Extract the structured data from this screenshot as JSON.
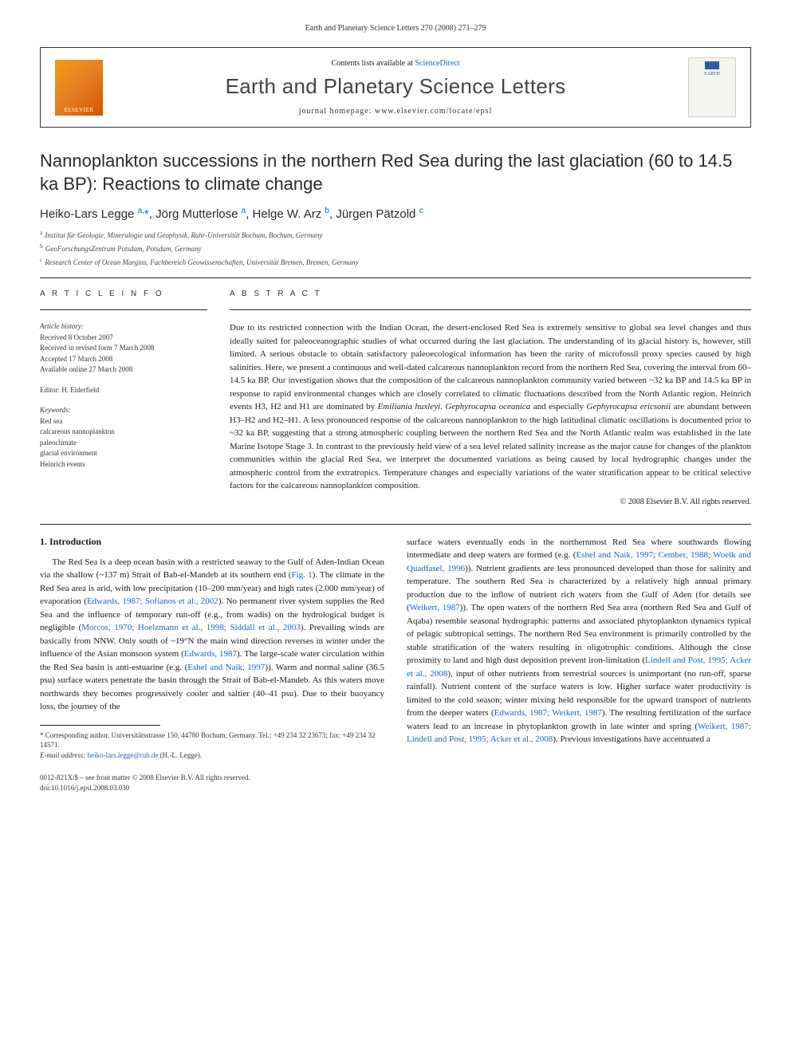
{
  "top_header": "Earth and Planetary Science Letters 270 (2008) 271–279",
  "header": {
    "contents_prefix": "Contents lists available at ",
    "contents_link": "ScienceDirect",
    "journal_name": "Earth and Planetary Science Letters",
    "homepage": "journal homepage: www.elsevier.com/locate/epsl",
    "publisher_logo_text": "ELSEVIER",
    "cover_text": "EARTH"
  },
  "article": {
    "title": "Nannoplankton successions in the northern Red Sea during the last glaciation (60 to 14.5 ka BP): Reactions to climate change",
    "authors_html": "Heiko-Lars Legge <sup>a,</sup><span class='star'>*</span>, Jörg Mutterlose <sup>a</sup>, Helge W. Arz <sup>b</sup>, Jürgen Pätzold <sup>c</sup>",
    "affiliations": [
      {
        "sup": "a",
        "text": "Institut für Geologie, Mineralogie und Geophysik, Ruhr-Universität Bochum, Bochum, Germany"
      },
      {
        "sup": "b",
        "text": "GeoForschungsZentrum Potsdam, Potsdam, Germany"
      },
      {
        "sup": "c",
        "text": "Research Center of Ocean Margins, Fachbereich Geowissenschaften, Universität Bremen, Bremen, Germany"
      }
    ]
  },
  "article_info": {
    "heading": "A R T I C L E   I N F O",
    "history_label": "Article history:",
    "history": [
      "Received 8 October 2007",
      "Received in revised form 7 March 2008",
      "Accepted 17 March 2008",
      "Available online 27 March 2008"
    ],
    "editor_label": "Editor: ",
    "editor": "H. Elderfield",
    "keywords_label": "Keywords:",
    "keywords": [
      "Red sea",
      "calcareous nannoplankton",
      "paleoclimate",
      "glacial environment",
      "Heinrich events"
    ]
  },
  "abstract": {
    "heading": "A B S T R A C T",
    "text": "Due to its restricted connection with the Indian Ocean, the desert-enclosed Red Sea is extremely sensitive to global sea level changes and thus ideally suited for paleoceanographic studies of what occurred during the last glaciation. The understanding of its glacial history is, however, still limited. A serious obstacle to obtain satisfactory paleoecological information has been the rarity of microfossil proxy species caused by high salinities. Here, we present a continuous and well-dated calcareous nannoplankton record from the northern Red Sea, covering the interval from 60–14.5 ka BP. Our investigation shows that the composition of the calcareous nannoplankton community varied between ~32 ka BP and 14.5 ka BP in response to rapid environmental changes which are closely correlated to climatic fluctuations described from the North Atlantic region. Heinrich events H3, H2 and H1 are dominated by <em>Emiliania huxleyi</em>. <em>Gephyrocapsa oceanica</em> and especially <em>Gephyrocapsa ericsonii</em> are abundant between H3–H2 and H2–H1. A less pronounced response of the calcareous nannoplankton to the high latitudinal climatic oscillations is documented prior to ~32 ka BP, suggesting that a strong atmospheric coupling between the northern Red Sea and the North Atlantic realm was established in the late Marine Isotope Stage 3. In contrast to the previously held view of a sea level related salinity increase as the major cause for changes of the plankton communities within the glacial Red Sea, we interpret the documented variations as being caused by local hydrographic changes under the atmospheric control from the extratropics. Temperature changes and especially variations of the water stratification appear to be critical selective factors for the calcareous nannoplankton composition.",
    "copyright": "© 2008 Elsevier B.V. All rights reserved."
  },
  "body": {
    "section_heading": "1. Introduction",
    "col1": "The Red Sea is a deep ocean basin with a restricted seaway to the Gulf of Aden-Indian Ocean via the shallow (~137 m) Strait of Bab-el-Mandeb at its southern end (<a class='ref-link' href='#'>Fig. 1</a>). The climate in the Red Sea area is arid, with low precipitation (10–200 mm/year) and high rates (2.000 mm/year) of evaporation (<a class='ref-link' href='#'>Edwards, 1987; Sofianos et al., 2002</a>). No permanent river system supplies the Red Sea and the influence of temporary run-off (e.g., from wadis) on the hydrological budget is negligible (<a class='ref-link' href='#'>Morcos, 1970; Hoelzmann et al., 1998; Siddall et al., 2003</a>). Prevailing winds are basically from NNW. Only south of ~19°N the main wind direction reverses in winter under the influence of the Asian monsoon system (<a class='ref-link' href='#'>Edwards, 1987</a>). The large-scale water circulation within the Red Sea basin is anti-estuarine (e.g. (<a class='ref-link' href='#'>Eshel and Naik, 1997</a>)). Warm and normal saline (36.5 psu) surface waters penetrate the basin through the Strait of Bab-el-Mandeb. As this waters move northwards they becomes progressively cooler and saltier (40–41 psu). Due to their buoyancy loss, the journey of the",
    "col2": "surface waters eventually ends in the northernmost Red Sea where southwards flowing intermediate and deep waters are formed (e.g. (<a class='ref-link' href='#'>Eshel and Naik, 1997; Cember, 1988; Woelk and Quadfasel, 1996</a>)). Nutrient gradients are less pronounced developed than those for salinity and temperature. The southern Red Sea is characterized by a relatively high annual primary production due to the inflow of nutrient rich waters from the Gulf of Aden (for details see (<a class='ref-link' href='#'>Weikert, 1987</a>)). The open waters of the northern Red Sea area (northern Red Sea and Gulf of Aqaba) resemble seasonal hydrographic patterns and associated phytoplankton dynamics typical of pelagic subtropical settings. The northern Red Sea environment is primarily controlled by the stable stratification of the waters resulting in oligotrophic conditions. Although the close proximity to land and high dust deposition prevent iron-limitation (<a class='ref-link' href='#'>Lindell and Post, 1995; Acker et al., 2008</a>), input of other nutrients from terrestrial sources is unimportant (no run-off, sparse rainfall). Nutrient content of the surface waters is low. Higher surface water productivity is limited to the cold season; winter mixing held responsible for the upward transport of nutrients from the deeper waters (<a class='ref-link' href='#'>Edwards, 1987; Weikert, 1987</a>). The resulting fertilization of the surface waters lead to an increase in phytoplankton growth in late winter and spring (<a class='ref-link' href='#'>Weikert, 1987; Lindell and Post, 1995; Acker et al., 2008</a>). Previous investigations have accentuated a"
  },
  "footnotes": {
    "corr": "* Corresponding author. Universitätsstrasse 150, 44780 Bochum, Germany. Tel.: +49 234 32 23673; fax: +49 234 32 14571.",
    "email_label": "E-mail address: ",
    "email": "heiko-lars.legge@rub.de",
    "email_suffix": " (H.-L. Legge)."
  },
  "footer": {
    "left1": "0012-821X/$ – see front matter © 2008 Elsevier B.V. All rights reserved.",
    "left2": "doi:10.1016/j.epsl.2008.03.030"
  },
  "colors": {
    "link": "#1565c0",
    "text": "#1a1a1a",
    "elsevier_gradient_start": "#f39c12",
    "elsevier_gradient_end": "#d35400"
  }
}
